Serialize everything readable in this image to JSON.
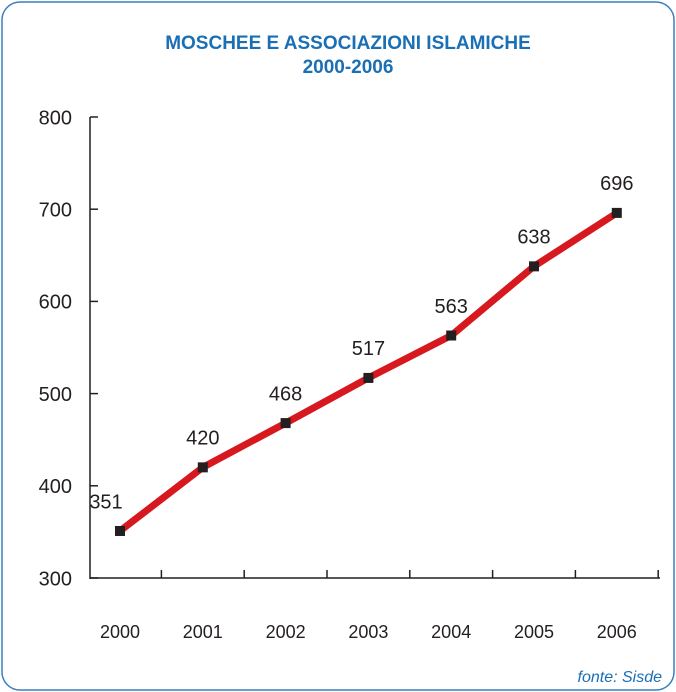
{
  "chart_data": {
    "type": "line",
    "title": "MOSCHEE E ASSOCIAZIONI ISLAMICHE",
    "subtitle": "2000-2006",
    "categories": [
      "2000",
      "2001",
      "2002",
      "2003",
      "2004",
      "2005",
      "2006"
    ],
    "values": [
      351,
      420,
      468,
      517,
      563,
      638,
      696
    ],
    "color": "#d7181f",
    "marker_color": "#231f20",
    "ylim": [
      300,
      800
    ],
    "yticks": [
      300,
      400,
      500,
      600,
      700,
      800
    ],
    "source": "fonte: Sisde"
  }
}
